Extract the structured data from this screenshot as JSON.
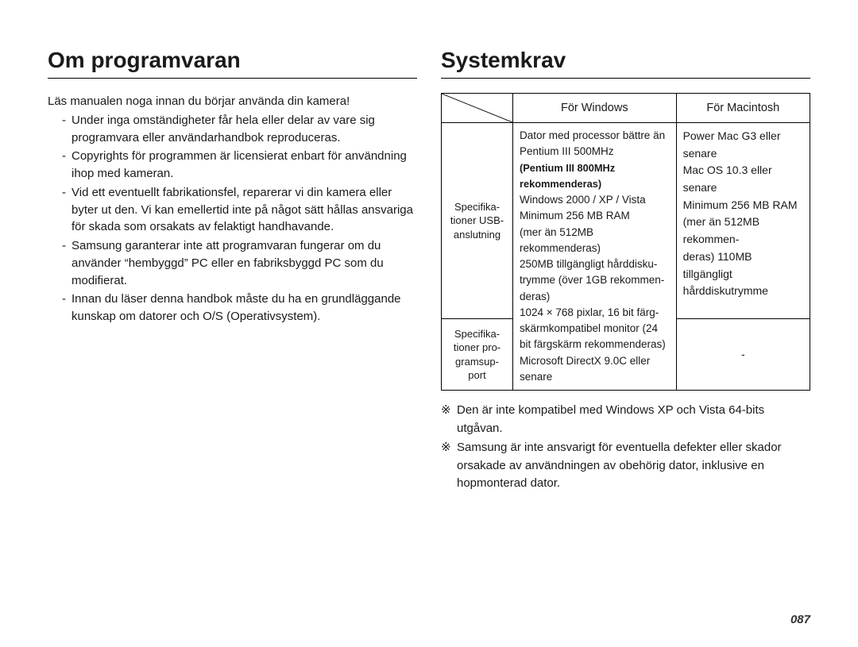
{
  "left": {
    "title": "Om programvaran",
    "intro": "Läs manualen noga innan du börjar använda din kamera!",
    "bullets": [
      "Under inga omständigheter får hela eller delar av vare sig programvara eller användarhandbok reproduceras.",
      "Copyrights för programmen är licensierat enbart för användning ihop med kameran.",
      "Vid ett eventuellt fabrikationsfel, reparerar vi din kamera eller byter ut den. Vi kan emellertid inte på något sätt hållas ansvariga för skada som orsakats av felaktigt handhavande.",
      "Samsung garanterar inte att programvaran fungerar om du använder “hembyggd” PC eller en fabriksbyggd PC som du modifierat.",
      "Innan du läser denna handbok måste du ha en grundläggande kunskap om datorer och O/S (Operativsystem)."
    ]
  },
  "right": {
    "title": "Systemkrav",
    "table": {
      "headers": {
        "windows": "För Windows",
        "mac": "För Macintosh"
      },
      "row1": {
        "label": "Specifika-\ntioner USB-\nanslutning",
        "windows": [
          "Dator med processor bättre än",
          "Pentium III 500MHz",
          {
            "bold": true,
            "text": "(Pentium III 800MHz rekommenderas)"
          },
          "Windows 2000 / XP / Vista",
          "Minimum 256 MB RAM",
          "(mer än 512MB rekommenderas)",
          "250MB tillgängligt hårddisku-",
          "trymme (över 1GB rekommen-",
          "deras)",
          "1024 × 768 pixlar, 16 bit färg-",
          "skärmkompatibel monitor (24",
          "bit färgskärm rekommenderas)",
          "Microsoft DirectX 9.0C eller",
          "senare"
        ],
        "mac": [
          "Power Mac G3 eller senare",
          "Mac OS 10.3 eller senare",
          "Minimum 256 MB RAM",
          "(mer än 512MB rekommen-",
          "deras) 110MB tillgängligt",
          "hårddiskutrymme"
        ]
      },
      "row2": {
        "label": "Specifika-\ntioner pro-\ngramsup-\nport",
        "mac": "-"
      }
    },
    "notes": [
      "Den är inte kompatibel med Windows XP och Vista 64-bits utgåvan.",
      "Samsung är inte ansvarigt för eventuella defekter eller skador orsakade av användningen av obehörig dator, inklusive en hopmonterad dator."
    ],
    "note_symbol": "※"
  },
  "page_number": "087",
  "style": {
    "bg": "#ffffff",
    "text": "#1a1a1a",
    "rule": "#000000",
    "title_fontsize": 28,
    "body_fontsize": 15,
    "table_fontsize": 13.5
  }
}
